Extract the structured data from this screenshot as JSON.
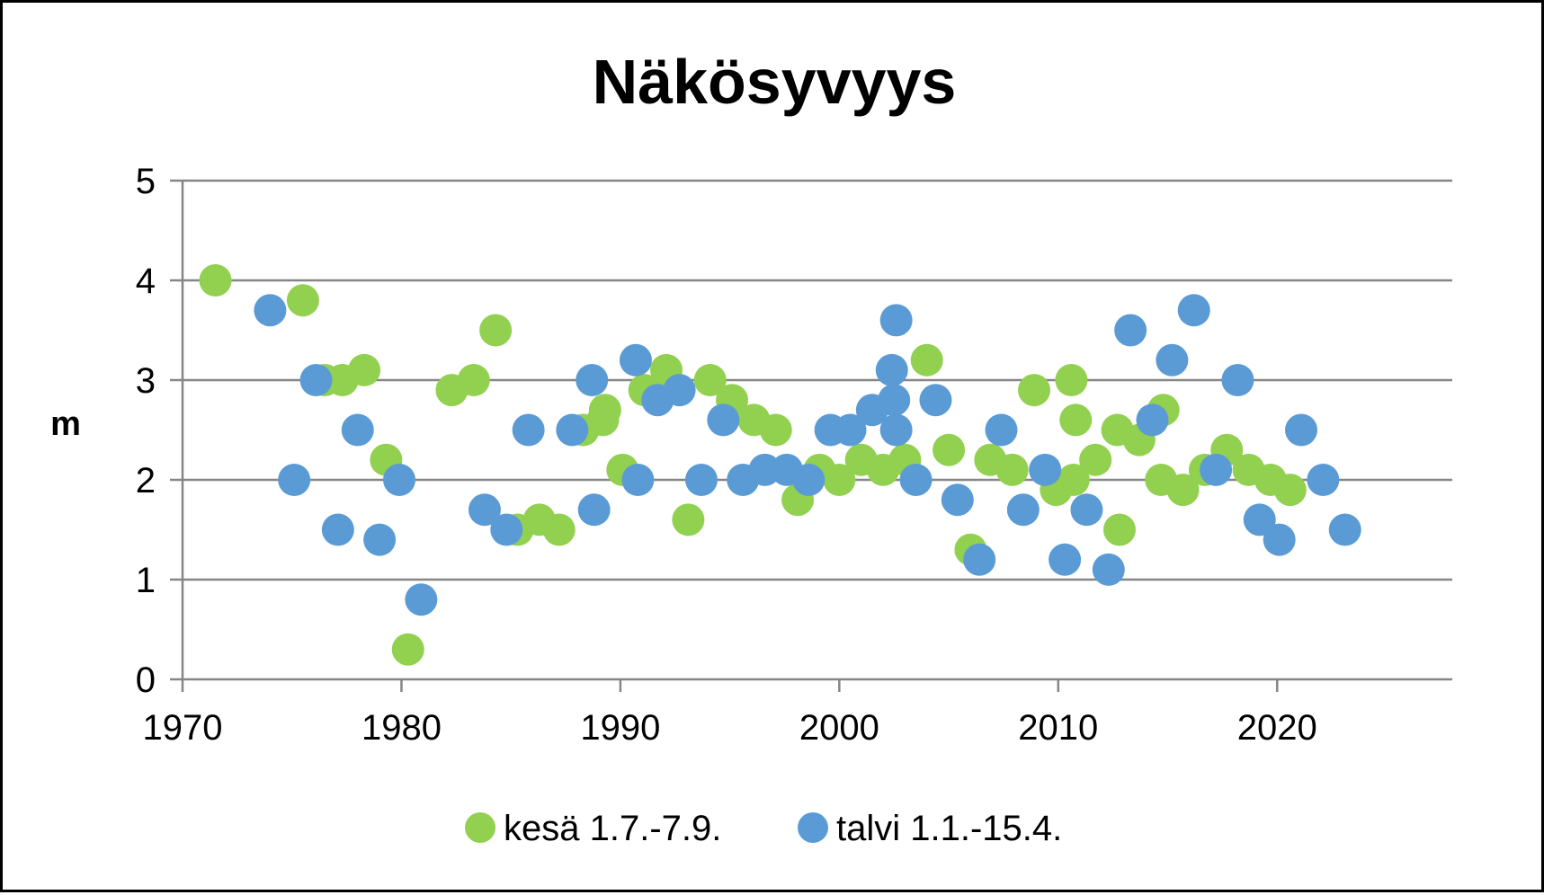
{
  "chart_data": {
    "type": "scatter",
    "title": "Näkösyvyys",
    "xlabel": "",
    "ylabel": "m",
    "xlim": [
      1970,
      2028
    ],
    "ylim": [
      0,
      5
    ],
    "x_ticks": [
      "1970",
      "1980",
      "1990",
      "2000",
      "2010",
      "2020"
    ],
    "y_ticks": [
      "0",
      "1",
      "2",
      "3",
      "4",
      "5"
    ],
    "grid": "horizontal",
    "legend": "bottom",
    "series": [
      {
        "name": "kesä 1.7.-7.9.",
        "color": "#92D050",
        "points": [
          [
            1971.5,
            4.0
          ],
          [
            1975.5,
            3.8
          ],
          [
            1976.5,
            3.0
          ],
          [
            1977.3,
            3.0
          ],
          [
            1978.3,
            3.1
          ],
          [
            1979.3,
            2.2
          ],
          [
            1980.3,
            0.3
          ],
          [
            1982.3,
            2.9
          ],
          [
            1983.3,
            3.0
          ],
          [
            1984.3,
            3.5
          ],
          [
            1985.3,
            1.5
          ],
          [
            1986.3,
            1.6
          ],
          [
            1987.2,
            1.5
          ],
          [
            1988.3,
            2.5
          ],
          [
            1989.2,
            2.6
          ],
          [
            1989.3,
            2.7
          ],
          [
            1990.1,
            2.1
          ],
          [
            1991.1,
            2.9
          ],
          [
            1992.1,
            3.1
          ],
          [
            1993.1,
            1.6
          ],
          [
            1994.1,
            3.0
          ],
          [
            1995.1,
            2.8
          ],
          [
            1996.1,
            2.6
          ],
          [
            1997.1,
            2.5
          ],
          [
            1998.1,
            1.8
          ],
          [
            1999.1,
            2.1
          ],
          [
            2000.0,
            2.0
          ],
          [
            2001.0,
            2.2
          ],
          [
            2002.0,
            2.1
          ],
          [
            2003.0,
            2.2
          ],
          [
            2004.0,
            3.2
          ],
          [
            2005.0,
            2.3
          ],
          [
            2006.0,
            1.3
          ],
          [
            2006.9,
            2.2
          ],
          [
            2007.9,
            2.1
          ],
          [
            2008.9,
            2.9
          ],
          [
            2009.9,
            1.9
          ],
          [
            2010.6,
            3.0
          ],
          [
            2010.7,
            2.0
          ],
          [
            2010.8,
            2.6
          ],
          [
            2011.7,
            2.2
          ],
          [
            2012.7,
            2.5
          ],
          [
            2012.8,
            1.5
          ],
          [
            2013.7,
            2.4
          ],
          [
            2014.7,
            2.0
          ],
          [
            2014.8,
            2.7
          ],
          [
            2015.7,
            1.9
          ],
          [
            2016.7,
            2.1
          ],
          [
            2017.7,
            2.3
          ],
          [
            2018.7,
            2.1
          ],
          [
            2019.7,
            2.0
          ],
          [
            2020.6,
            1.9
          ]
        ]
      },
      {
        "name": "talvi 1.1.-15.4.",
        "color": "#5B9BD5",
        "points": [
          [
            1974.0,
            3.7
          ],
          [
            1975.1,
            2.0
          ],
          [
            1976.1,
            3.0
          ],
          [
            1977.1,
            1.5
          ],
          [
            1978.0,
            2.5
          ],
          [
            1979.0,
            1.4
          ],
          [
            1979.9,
            2.0
          ],
          [
            1980.9,
            0.8
          ],
          [
            1983.8,
            1.7
          ],
          [
            1984.8,
            1.5
          ],
          [
            1985.8,
            2.5
          ],
          [
            1987.8,
            2.5
          ],
          [
            1988.7,
            3.0
          ],
          [
            1988.8,
            1.7
          ],
          [
            1990.7,
            3.2
          ],
          [
            1990.8,
            2.0
          ],
          [
            1991.7,
            2.8
          ],
          [
            1992.7,
            2.9
          ],
          [
            1993.7,
            2.0
          ],
          [
            1994.7,
            2.6
          ],
          [
            1995.6,
            2.0
          ],
          [
            1996.6,
            2.1
          ],
          [
            1997.6,
            2.1
          ],
          [
            1998.6,
            2.0
          ],
          [
            1999.6,
            2.5
          ],
          [
            2000.5,
            2.5
          ],
          [
            2001.5,
            2.7
          ],
          [
            2002.4,
            3.1
          ],
          [
            2002.5,
            2.8
          ],
          [
            2002.6,
            2.5
          ],
          [
            2002.6,
            3.6
          ],
          [
            2003.5,
            2.0
          ],
          [
            2004.4,
            2.8
          ],
          [
            2005.4,
            1.8
          ],
          [
            2006.4,
            1.2
          ],
          [
            2007.4,
            2.5
          ],
          [
            2008.4,
            1.7
          ],
          [
            2009.4,
            2.1
          ],
          [
            2010.3,
            1.2
          ],
          [
            2011.3,
            1.7
          ],
          [
            2012.3,
            1.1
          ],
          [
            2013.3,
            3.5
          ],
          [
            2014.3,
            2.6
          ],
          [
            2015.2,
            3.2
          ],
          [
            2016.2,
            3.7
          ],
          [
            2017.2,
            2.1
          ],
          [
            2018.2,
            3.0
          ],
          [
            2019.2,
            1.6
          ],
          [
            2020.1,
            1.4
          ],
          [
            2021.1,
            2.5
          ],
          [
            2022.1,
            2.0
          ],
          [
            2023.1,
            1.5
          ]
        ]
      }
    ]
  }
}
